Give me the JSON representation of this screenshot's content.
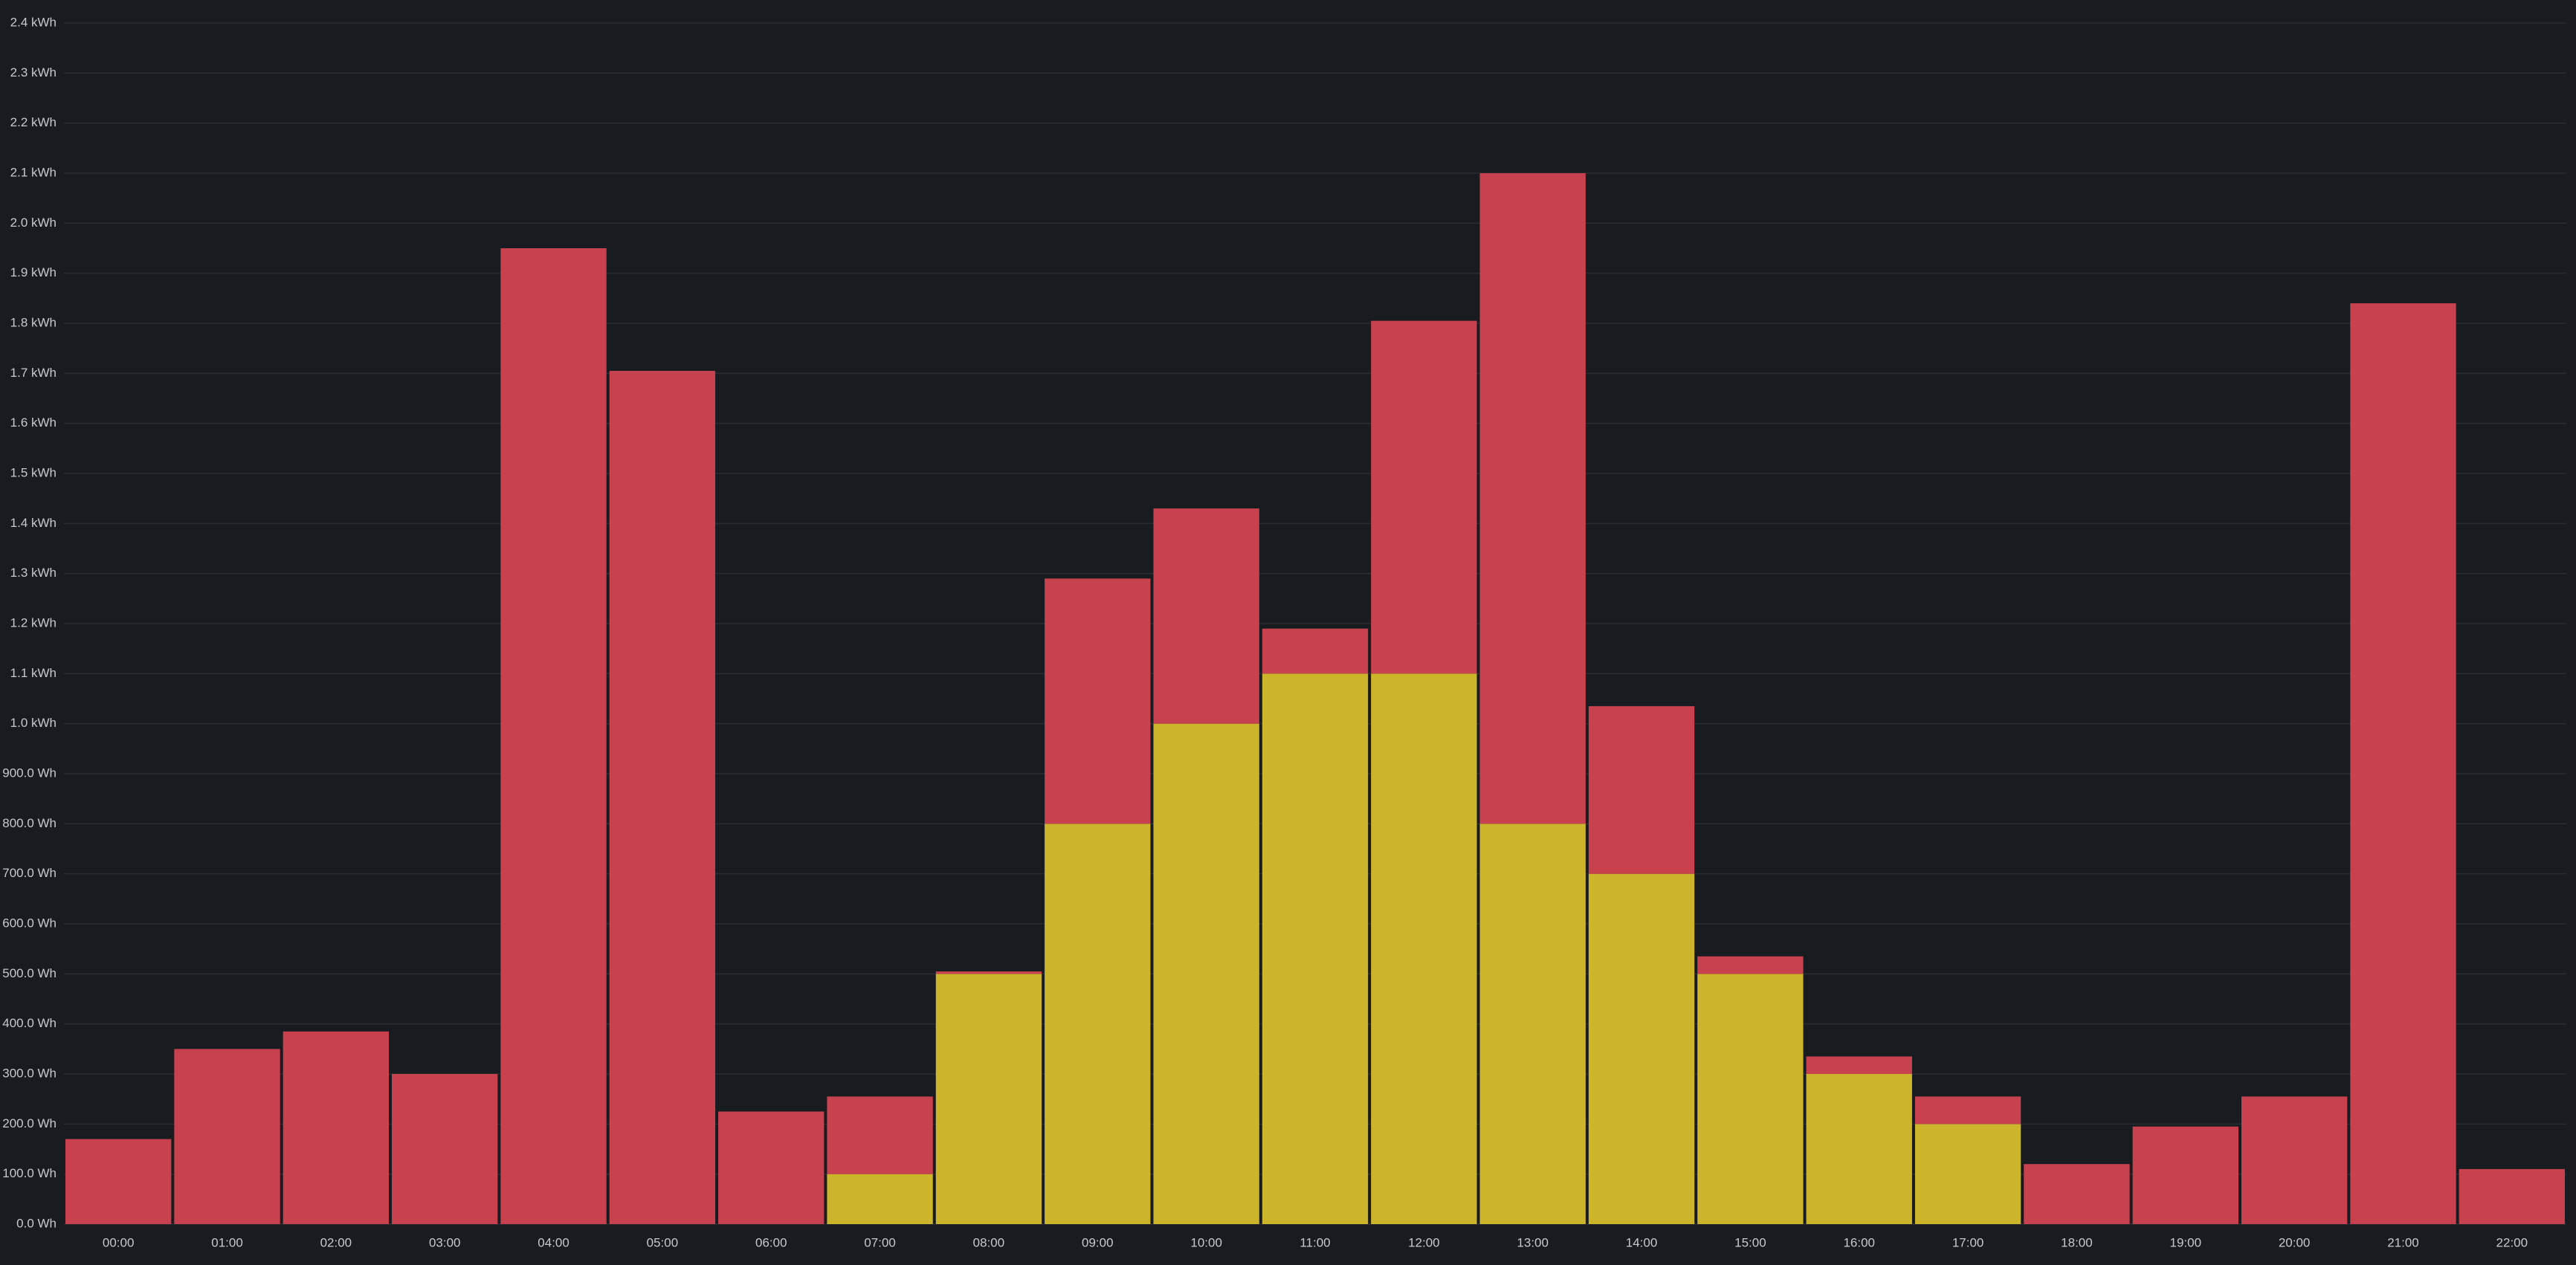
{
  "chart_data": {
    "type": "stacked-bar",
    "categories": [
      "00:00",
      "01:00",
      "02:00",
      "03:00",
      "04:00",
      "05:00",
      "06:00",
      "07:00",
      "08:00",
      "09:00",
      "10:00",
      "11:00",
      "12:00",
      "13:00",
      "14:00",
      "15:00",
      "16:00",
      "17:00",
      "18:00",
      "19:00",
      "20:00",
      "21:00",
      "22:00"
    ],
    "series": [
      {
        "color": "#cdb52b",
        "values": [
          0,
          0,
          0,
          0,
          0,
          0,
          0,
          100,
          500,
          800,
          1000,
          1100,
          1100,
          800,
          700,
          500,
          300,
          200,
          0,
          0,
          0,
          0,
          0
        ]
      },
      {
        "color": "#c8414f",
        "values": [
          170,
          350,
          385,
          300,
          1950,
          1705,
          225,
          155,
          5,
          490,
          430,
          90,
          705,
          1300,
          335,
          35,
          35,
          55,
          120,
          195,
          255,
          1840,
          110
        ]
      }
    ],
    "ylim": [
      0,
      2400
    ],
    "yticks": [
      {
        "value": 0,
        "label": "0.0 Wh"
      },
      {
        "value": 100,
        "label": "100.0 Wh"
      },
      {
        "value": 200,
        "label": "200.0 Wh"
      },
      {
        "value": 300,
        "label": "300.0 Wh"
      },
      {
        "value": 400,
        "label": "400.0 Wh"
      },
      {
        "value": 500,
        "label": "500.0 Wh"
      },
      {
        "value": 600,
        "label": "600.0 Wh"
      },
      {
        "value": 700,
        "label": "700.0 Wh"
      },
      {
        "value": 800,
        "label": "800.0 Wh"
      },
      {
        "value": 900,
        "label": "900.0 Wh"
      },
      {
        "value": 1000,
        "label": "1.0 kWh"
      },
      {
        "value": 1100,
        "label": "1.1 kWh"
      },
      {
        "value": 1200,
        "label": "1.2 kWh"
      },
      {
        "value": 1300,
        "label": "1.3 kWh"
      },
      {
        "value": 1400,
        "label": "1.4 kWh"
      },
      {
        "value": 1500,
        "label": "1.5 kWh"
      },
      {
        "value": 1600,
        "label": "1.6 kWh"
      },
      {
        "value": 1700,
        "label": "1.7 kWh"
      },
      {
        "value": 1800,
        "label": "1.8 kWh"
      },
      {
        "value": 1900,
        "label": "1.9 kWh"
      },
      {
        "value": 2000,
        "label": "2.0 kWh"
      },
      {
        "value": 2100,
        "label": "2.1 kWh"
      },
      {
        "value": 2200,
        "label": "2.2 kWh"
      },
      {
        "value": 2300,
        "label": "2.3 kWh"
      },
      {
        "value": 2400,
        "label": "2.4 kWh"
      }
    ],
    "grid": true
  }
}
